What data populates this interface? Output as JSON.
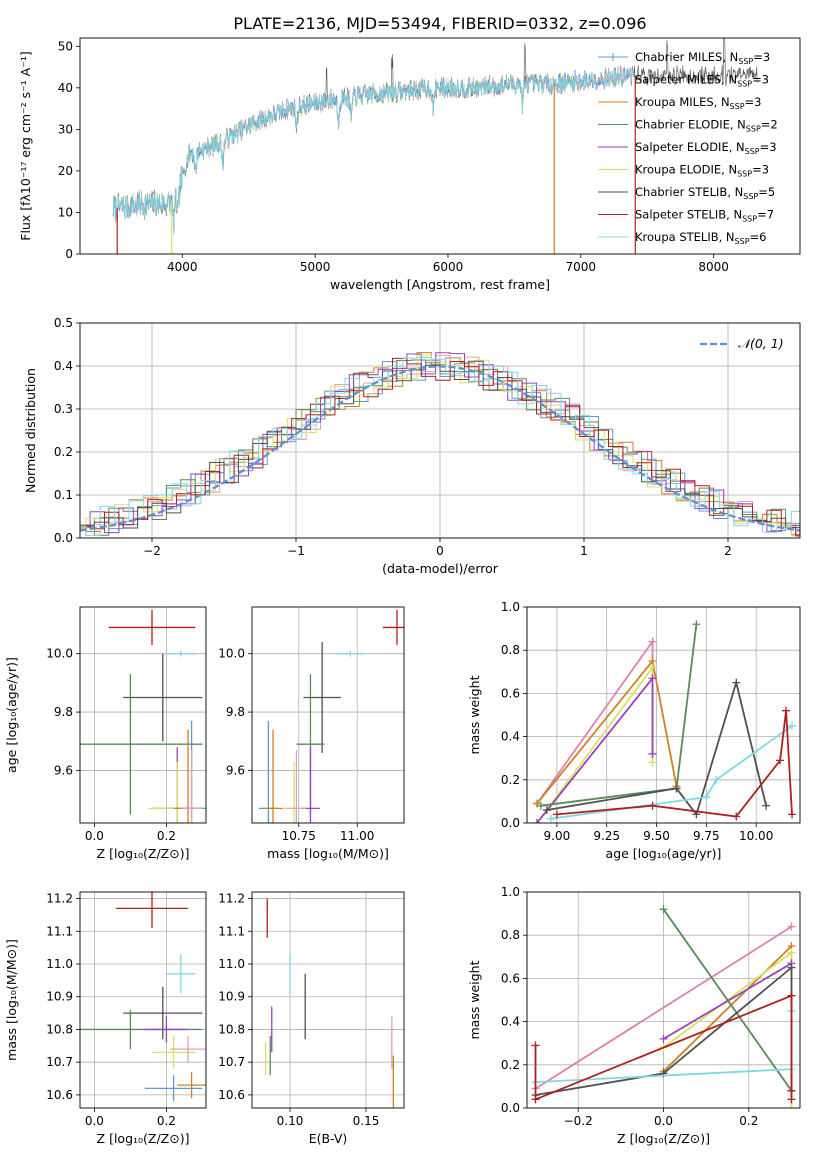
{
  "figure_title": "PLATE=2136, MJD=53494, FIBERID=0332, z=0.096",
  "colors": {
    "chab_miles": "#5b9bd5",
    "salp_miles": "#e0a0c0",
    "krou_miles": "#d08020",
    "chab_elodie": "#5a8a5a",
    "salp_elodie": "#9a40c0",
    "krou_elodie": "#d8e060",
    "chab_stelib": "#505050",
    "salp_stelib": "#b02020",
    "krou_stelib": "#80d8e0",
    "gauss": "#5b8fd8",
    "pink_line": "#e080b0"
  },
  "chart_data": [
    {
      "id": "spectrum",
      "type": "line",
      "xlabel": "wavelength [Angstrom, rest frame]",
      "ylabel": "Flux [fλ10⁻¹⁷ erg cm⁻² s⁻¹ A⁻¹]",
      "xlim": [
        3230,
        8650
      ],
      "ylim": [
        0,
        52
      ],
      "xticks": [
        4000,
        5000,
        6000,
        7000,
        8000
      ],
      "yticks": [
        0,
        10,
        20,
        30,
        40,
        50
      ],
      "legend": [
        {
          "label": "Chabrier MILES, N_SSP=3",
          "color": "chab_miles"
        },
        {
          "label": "Salpeter MILES, N_SSP=3",
          "color": "salp_miles"
        },
        {
          "label": "Kroupa MILES, N_SSP=3",
          "color": "krou_miles"
        },
        {
          "label": "Chabrier ELODIE, N_SSP=2",
          "color": "chab_elodie"
        },
        {
          "label": "Salpeter ELODIE, N_SSP=3",
          "color": "salp_elodie"
        },
        {
          "label": "Kroupa ELODIE, N_SSP=3",
          "color": "krou_elodie"
        },
        {
          "label": "Chabrier STELIB, N_SSP=5",
          "color": "chab_stelib"
        },
        {
          "label": "Salpeter STELIB, N_SSP=7",
          "color": "salp_stelib"
        },
        {
          "label": "Kroupa STELIB, N_SSP=6",
          "color": "krou_stelib"
        }
      ],
      "continuum": {
        "x": [
          3500,
          3700,
          3850,
          3950,
          4050,
          4300,
          4500,
          4800,
          5100,
          5300,
          5600,
          5900,
          6200,
          6500,
          6800,
          7100,
          7400
        ],
        "y": [
          11,
          12,
          12,
          13,
          24,
          27,
          31,
          35,
          37,
          38,
          39,
          40,
          40,
          41,
          41,
          42,
          43
        ]
      },
      "absorptions": [
        3934,
        3968,
        4101,
        4305,
        4861,
        5175,
        5270,
        5890,
        6563
      ],
      "dropouts": [
        [
          3510,
          "salp_stelib"
        ],
        [
          3920,
          "krou_elodie"
        ],
        [
          6800,
          "krou_miles"
        ],
        [
          7410,
          "salp_stelib"
        ]
      ],
      "spikes": [
        5085,
        5580,
        6580,
        7650,
        8080
      ]
    },
    {
      "id": "residuals",
      "type": "step",
      "xlabel": "(data-model)/error",
      "ylabel": "Normed distribution",
      "xlim": [
        -2.5,
        2.5
      ],
      "ylim": [
        0,
        0.5
      ],
      "xticks": [
        -2,
        -1,
        0,
        1,
        2
      ],
      "yticks": [
        0.0,
        0.1,
        0.2,
        0.3,
        0.4,
        0.5
      ],
      "bin_width": 0.1,
      "gaussian_label": "𝒩(0, 1)"
    },
    {
      "id": "age_vs_Z",
      "type": "errorbar",
      "xlabel": "Z [log₁₀(Z/Z⊙)]",
      "ylabel": "age  [log₁₀(age/yr)]",
      "xlim": [
        -0.04,
        0.31
      ],
      "ylim": [
        9.42,
        10.16
      ],
      "xticks": [
        0.0,
        0.2
      ],
      "yticks": [
        9.6,
        9.8,
        10.0
      ],
      "points": [
        {
          "c": "salp_stelib",
          "x": 0.16,
          "y": 10.09,
          "xe": 0.12,
          "ye": 0.06
        },
        {
          "c": "krou_stelib",
          "x": 0.24,
          "y": 10.0,
          "xe": 0.04,
          "ye": 0.01
        },
        {
          "c": "chab_stelib",
          "x": 0.19,
          "y": 9.85,
          "xe": 0.11,
          "ye": 0.15
        },
        {
          "c": "chab_elodie",
          "x": 0.1,
          "y": 9.69,
          "xe": 0.2,
          "ye": 0.24
        },
        {
          "c": "salp_elodie",
          "x": 0.23,
          "y": 9.47,
          "xe": 0.07,
          "ye": 0.21
        },
        {
          "c": "krou_elodie",
          "x": 0.23,
          "y": 9.47,
          "xe": 0.08,
          "ye": 0.16
        },
        {
          "c": "chab_miles",
          "x": 0.27,
          "y": 9.47,
          "xe": 0.04,
          "ye": 0.3
        },
        {
          "c": "krou_miles",
          "x": 0.26,
          "y": 9.47,
          "xe": 0.04,
          "ye": 0.27
        },
        {
          "c": "salp_miles",
          "x": 0.27,
          "y": 9.47,
          "xe": 0.03,
          "ye": 0.2
        }
      ]
    },
    {
      "id": "age_vs_mass",
      "type": "errorbar",
      "xlabel": "mass [log₁₀(M/M⊙)]",
      "ylabel": "",
      "xlim": [
        10.55,
        11.2
      ],
      "ylim": [
        9.42,
        10.16
      ],
      "xticks": [
        10.75,
        11.0
      ],
      "yticks": [
        9.6,
        9.8,
        10.0
      ],
      "points": [
        {
          "c": "salp_stelib",
          "x": 11.17,
          "y": 10.09,
          "xe": 0.06,
          "ye": 0.06
        },
        {
          "c": "krou_stelib",
          "x": 10.97,
          "y": 10.0,
          "xe": 0.06,
          "ye": 0.01
        },
        {
          "c": "chab_stelib",
          "x": 10.85,
          "y": 9.85,
          "xe": 0.08,
          "ye": 0.19
        },
        {
          "c": "chab_elodie",
          "x": 10.8,
          "y": 9.69,
          "xe": 0.06,
          "ye": 0.24
        },
        {
          "c": "salp_elodie",
          "x": 10.8,
          "y": 9.47,
          "xe": 0.04,
          "ye": 0.21
        },
        {
          "c": "krou_elodie",
          "x": 10.73,
          "y": 9.47,
          "xe": 0.05,
          "ye": 0.16
        },
        {
          "c": "chab_miles",
          "x": 10.62,
          "y": 9.47,
          "xe": 0.04,
          "ye": 0.3
        },
        {
          "c": "krou_miles",
          "x": 10.64,
          "y": 9.47,
          "xe": 0.04,
          "ye": 0.27
        },
        {
          "c": "salp_miles",
          "x": 10.74,
          "y": 9.47,
          "xe": 0.04,
          "ye": 0.2
        }
      ]
    },
    {
      "id": "weight_vs_age",
      "type": "line",
      "xlabel": "age  [log₁₀(age/yr)]",
      "ylabel": "mass weight",
      "xlim": [
        8.85,
        10.22
      ],
      "ylim": [
        0,
        1
      ],
      "xticks": [
        9.0,
        9.25,
        9.5,
        9.75,
        10.0
      ],
      "yticks": [
        0.0,
        0.2,
        0.4,
        0.6,
        0.8,
        1.0
      ],
      "series": [
        {
          "c": "pink_line",
          "x": [
            8.9,
            9.48,
            9.48
          ],
          "y": [
            0.09,
            0.84,
            0.32
          ]
        },
        {
          "c": "krou_miles",
          "x": [
            8.9,
            9.48,
            9.6
          ],
          "y": [
            0.09,
            0.75,
            0.17
          ]
        },
        {
          "c": "krou_elodie",
          "x": [
            8.9,
            9.48,
            9.48
          ],
          "y": [
            0.0,
            0.72,
            0.28
          ]
        },
        {
          "c": "salp_elodie",
          "x": [
            8.9,
            9.48,
            9.48
          ],
          "y": [
            0.0,
            0.67,
            0.32
          ]
        },
        {
          "c": "chab_elodie",
          "x": [
            8.92,
            9.6,
            9.7
          ],
          "y": [
            0.08,
            0.16,
            0.92
          ]
        },
        {
          "c": "chab_stelib",
          "x": [
            8.95,
            9.6,
            9.7,
            9.9,
            10.05
          ],
          "y": [
            0.06,
            0.16,
            0.04,
            0.65,
            0.08
          ]
        },
        {
          "c": "krou_stelib",
          "x": [
            8.97,
            9.75,
            9.8,
            10.18
          ],
          "y": [
            0.02,
            0.12,
            0.2,
            0.45
          ]
        },
        {
          "c": "salp_stelib",
          "x": [
            9.0,
            9.48,
            9.9,
            10.12,
            10.15,
            10.18
          ],
          "y": [
            0.04,
            0.08,
            0.03,
            0.29,
            0.52,
            0.04
          ]
        }
      ]
    },
    {
      "id": "mass_vs_Z",
      "type": "errorbar",
      "xlabel": "Z [log₁₀(Z/Z⊙)]",
      "ylabel": "mass [log₁₀(M/M⊙)]",
      "xlim": [
        -0.04,
        0.31
      ],
      "ylim": [
        10.56,
        11.22
      ],
      "xticks": [
        0.0,
        0.2
      ],
      "yticks": [
        10.6,
        10.7,
        10.8,
        10.9,
        11.0,
        11.1,
        11.2
      ],
      "points": [
        {
          "c": "salp_stelib",
          "x": 0.16,
          "y": 11.17,
          "xe": 0.1,
          "ye": 0.06
        },
        {
          "c": "krou_stelib",
          "x": 0.24,
          "y": 10.97,
          "xe": 0.04,
          "ye": 0.06
        },
        {
          "c": "chab_stelib",
          "x": 0.19,
          "y": 10.85,
          "xe": 0.11,
          "ye": 0.08
        },
        {
          "c": "chab_elodie",
          "x": 0.1,
          "y": 10.8,
          "xe": 0.2,
          "ye": 0.06
        },
        {
          "c": "salp_elodie",
          "x": 0.2,
          "y": 10.8,
          "xe": 0.06,
          "ye": 0.04
        },
        {
          "c": "krou_elodie",
          "x": 0.22,
          "y": 10.73,
          "xe": 0.06,
          "ye": 0.05
        },
        {
          "c": "salp_miles",
          "x": 0.26,
          "y": 10.74,
          "xe": 0.05,
          "ye": 0.04
        },
        {
          "c": "krou_miles",
          "x": 0.27,
          "y": 10.63,
          "xe": 0.04,
          "ye": 0.04
        },
        {
          "c": "chab_miles",
          "x": 0.22,
          "y": 10.62,
          "xe": 0.08,
          "ye": 0.04
        }
      ]
    },
    {
      "id": "mass_vs_EBV",
      "type": "errorbar",
      "xlabel": "E(B-V)",
      "ylabel": "",
      "xlim": [
        0.075,
        0.175
      ],
      "ylim": [
        10.56,
        11.22
      ],
      "xticks": [
        0.1,
        0.15
      ],
      "yticks": [
        10.6,
        10.7,
        10.8,
        10.9,
        11.0,
        11.1,
        11.2
      ],
      "points": [
        {
          "c": "salp_stelib",
          "x": 0.085,
          "y": 11.14,
          "xe": 0.0,
          "ye": 0.06
        },
        {
          "c": "krou_stelib",
          "x": 0.1,
          "y": 10.97,
          "xe": 0.0,
          "ye": 0.06
        },
        {
          "c": "chab_stelib",
          "x": 0.11,
          "y": 10.87,
          "xe": 0.0,
          "ye": 0.1
        },
        {
          "c": "salp_elodie",
          "x": 0.088,
          "y": 10.8,
          "xe": 0.0,
          "ye": 0.07
        },
        {
          "c": "chab_elodie",
          "x": 0.087,
          "y": 10.72,
          "xe": 0.0,
          "ye": 0.06
        },
        {
          "c": "krou_elodie",
          "x": 0.084,
          "y": 10.71,
          "xe": 0.0,
          "ye": 0.05
        },
        {
          "c": "salp_miles",
          "x": 0.167,
          "y": 10.76,
          "xe": 0.0,
          "ye": 0.08
        },
        {
          "c": "krou_miles",
          "x": 0.168,
          "y": 10.64,
          "xe": 0.0,
          "ye": 0.08
        }
      ]
    },
    {
      "id": "weight_vs_Z",
      "type": "line",
      "xlabel": "Z [log₁₀(Z/Z⊙)]",
      "ylabel": "mass weight",
      "xlim": [
        -0.32,
        0.32
      ],
      "ylim": [
        0,
        1
      ],
      "xticks": [
        -0.2,
        0.0,
        0.2
      ],
      "yticks": [
        0.0,
        0.2,
        0.4,
        0.6,
        0.8,
        1.0
      ],
      "series": [
        {
          "c": "pink_line",
          "x": [
            -0.3,
            0.3
          ],
          "y": [
            0.09,
            0.84
          ]
        },
        {
          "c": "krou_miles",
          "x": [
            0.0,
            0.3
          ],
          "y": [
            0.17,
            0.75
          ]
        },
        {
          "c": "krou_elodie",
          "x": [
            0.0,
            0.3,
            0.3
          ],
          "y": [
            0.28,
            0.72,
            0.0
          ]
        },
        {
          "c": "salp_elodie",
          "x": [
            0.0,
            0.3
          ],
          "y": [
            0.32,
            0.67
          ]
        },
        {
          "c": "chab_elodie",
          "x": [
            0.0,
            0.3
          ],
          "y": [
            0.92,
            0.08
          ]
        },
        {
          "c": "chab_stelib",
          "x": [
            -0.3,
            0.0,
            0.3,
            0.3
          ],
          "y": [
            0.06,
            0.16,
            0.65,
            0.08
          ]
        },
        {
          "c": "krou_stelib",
          "x": [
            -0.3,
            0.3,
            0.3
          ],
          "y": [
            0.12,
            0.18,
            0.45
          ]
        },
        {
          "c": "salp_stelib",
          "x": [
            -0.3,
            -0.3,
            0.3,
            0.3,
            0.3
          ],
          "y": [
            0.29,
            0.04,
            0.52,
            0.08,
            0.04
          ]
        }
      ]
    }
  ]
}
